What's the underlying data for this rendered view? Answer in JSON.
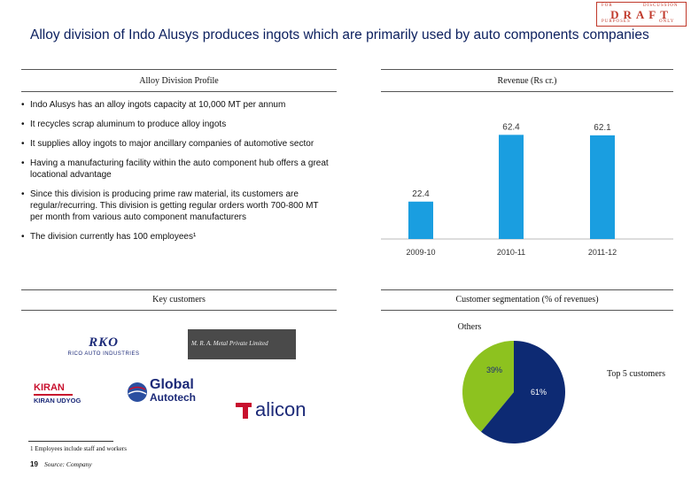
{
  "stamp": {
    "line1_left": "FOR",
    "line1_right": "DISCUSSION",
    "word": "DRAFT",
    "line3_left": "PURPOSES",
    "line3_right": "ONLY"
  },
  "title": "Alloy division of Indo Alusys produces ingots which are primarily used by auto components companies",
  "sections": {
    "profile": "Alloy Division Profile",
    "revenue": "Revenue (Rs cr.)",
    "customers": "Key customers",
    "segmentation": "Customer segmentation  (% of revenues)"
  },
  "bullets": [
    "Indo Alusys has an alloy ingots capacity at 10,000 MT per annum",
    "It recycles scrap aluminum to produce alloy ingots",
    "It supplies alloy ingots to major ancillary companies of automotive sector",
    "Having a manufacturing facility within the auto component hub offers a great locational advantage",
    "Since this division is producing prime raw material, its customers are regular/recurring. This division is getting regular orders worth 700-800 MT per month from various auto component manufacturers",
    "The division currently has 100 employees¹"
  ],
  "logos": {
    "rico_mark": "RKO",
    "rico_name": "RICO AUTO INDUSTRIES",
    "mra": "M. R. A. Metal Private Limited",
    "kiran_mark": "KIRAN",
    "kiran_name": "KIRAN UDYOG",
    "global_1": "Global",
    "global_2": "Autotech",
    "alicon": "alicon"
  },
  "chart_data": [
    {
      "type": "bar",
      "categories": [
        "2009-10",
        "2010-11",
        "2011-12"
      ],
      "values": [
        22.4,
        62.4,
        62.1
      ],
      "value_labels": [
        "22.4",
        "62.4",
        "62.1"
      ],
      "title": "Revenue (Rs cr.)",
      "xlabel": "",
      "ylabel": "",
      "ylim": [
        0,
        70
      ],
      "color": "#1a9ee0",
      "grid": false
    },
    {
      "type": "pie",
      "title": "Customer segmentation  (% of revenues)",
      "labels": [
        "Others",
        "Top 5 customers"
      ],
      "values": [
        39,
        61
      ],
      "value_labels": [
        "39%",
        "61%"
      ],
      "colors": [
        "#8dc21f",
        "#0d2a73"
      ]
    }
  ],
  "footnote": "1 Employees include staff and workers",
  "page_number": "19",
  "source": "Source: Company"
}
